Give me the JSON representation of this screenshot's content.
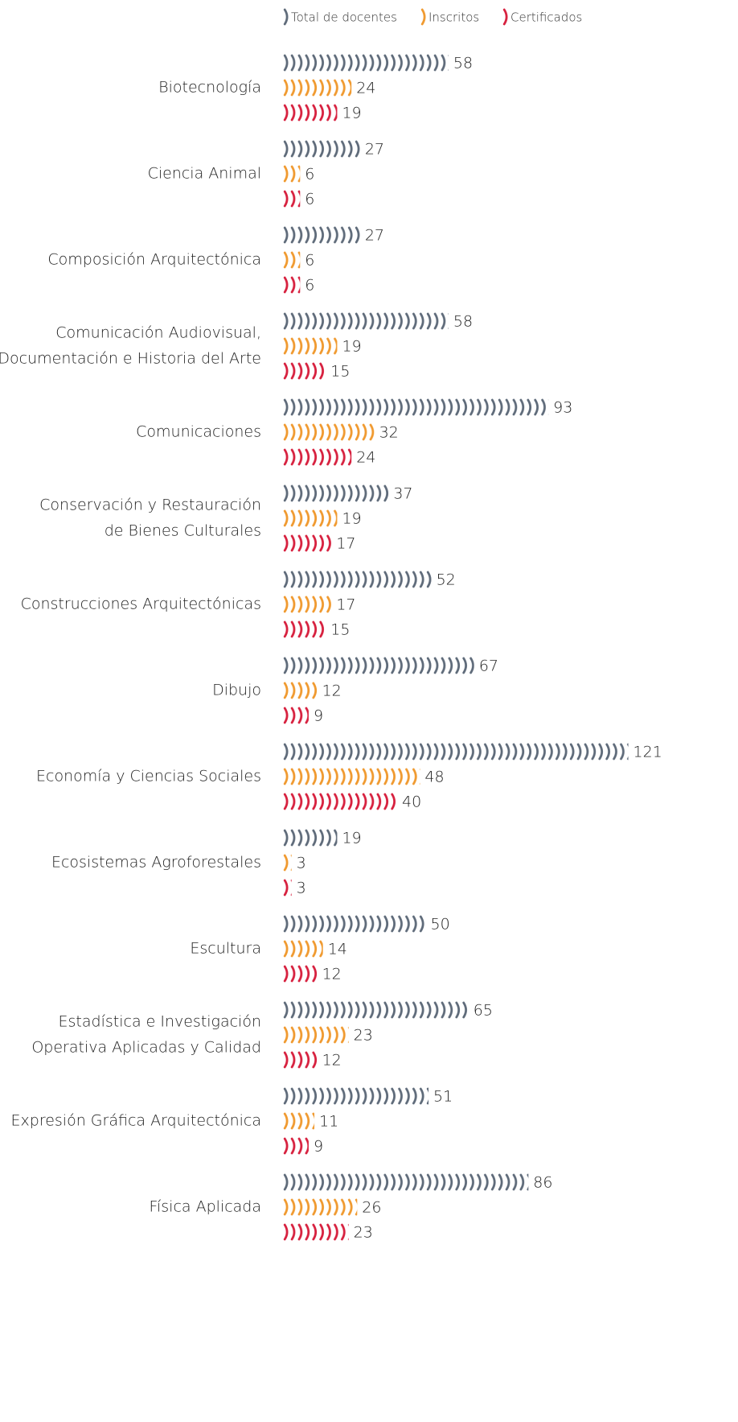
{
  "chart_data": {
    "type": "bar",
    "orientation": "horizontal",
    "categories": [
      "Biotecnología",
      "Ciencia Animal",
      "Composición Arquitectónica",
      [
        "Comunicación Audiovisual,",
        "Documentación e Historia del Arte"
      ],
      "Comunicaciones",
      [
        "Conservación y Restauración",
        "de Bienes Culturales"
      ],
      "Construcciones Arquitectónicas",
      "Dibujo",
      "Economía y Ciencias Sociales",
      "Ecosistemas Agroforestales",
      "Escultura",
      [
        "Estadística e Investigación",
        "Operativa Aplicadas y Calidad"
      ],
      "Expresión Gráfica Arquitectónica",
      "Física Aplicada"
    ],
    "series": [
      {
        "name": "Total de docentes",
        "color": "#5f6b7a",
        "values": [
          58,
          27,
          27,
          58,
          93,
          37,
          52,
          67,
          121,
          19,
          50,
          65,
          51,
          86
        ]
      },
      {
        "name": "Inscritos",
        "color": "#f09a30",
        "values": [
          24,
          6,
          6,
          19,
          32,
          19,
          17,
          12,
          48,
          3,
          14,
          23,
          11,
          26
        ]
      },
      {
        "name": "Certificados",
        "color": "#d7213f",
        "values": [
          19,
          6,
          6,
          15,
          24,
          17,
          15,
          9,
          40,
          3,
          12,
          12,
          9,
          23
        ]
      }
    ],
    "legend": "top"
  }
}
